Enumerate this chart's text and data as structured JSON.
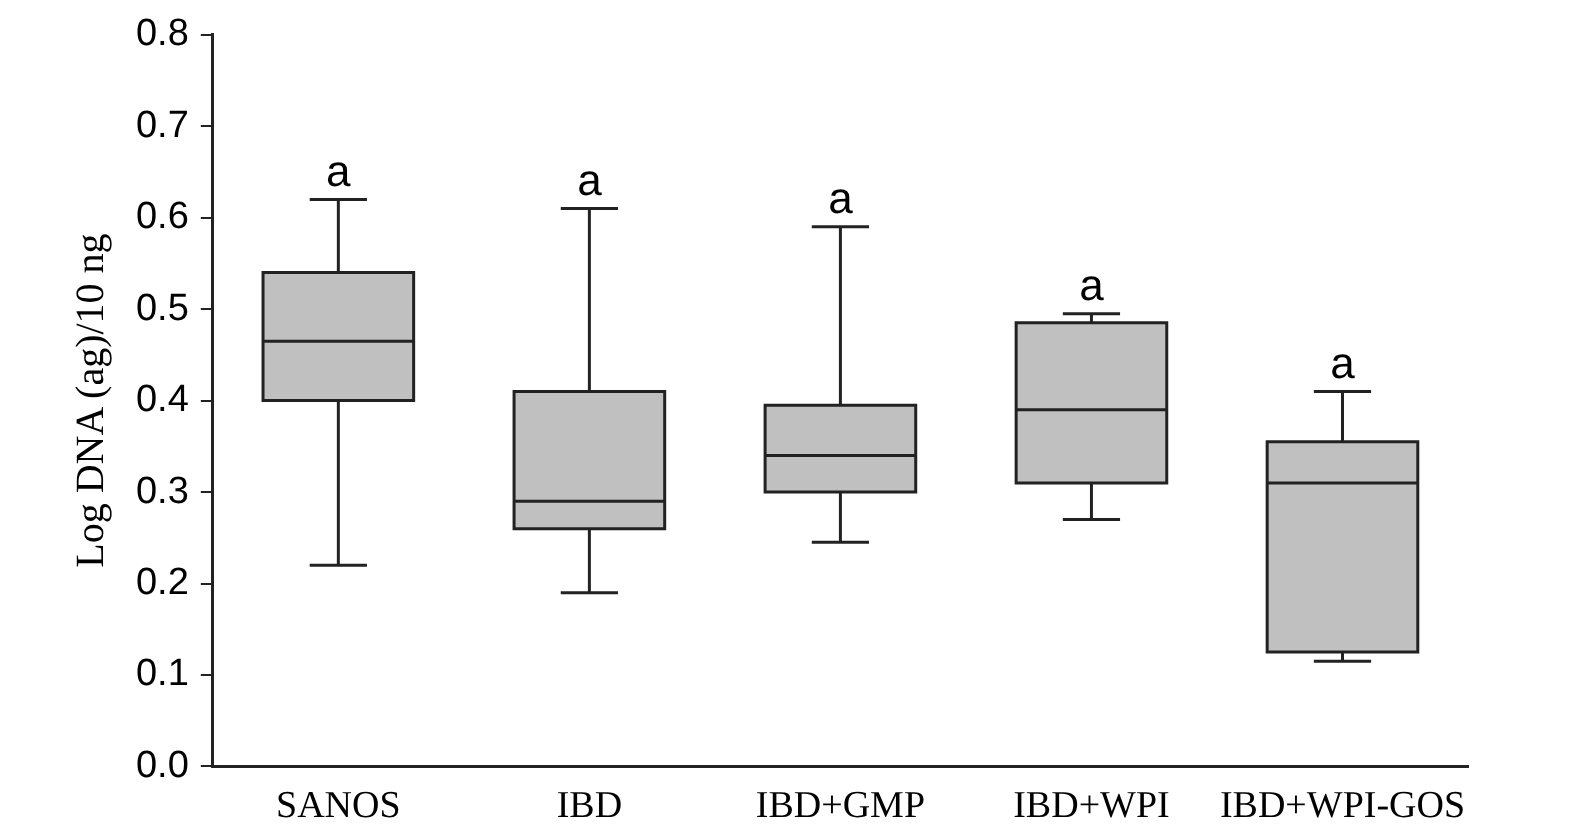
{
  "chart_data": {
    "type": "box",
    "ylabel": "Log DNA (ag)/10 ng",
    "categories": [
      "SANOS",
      "IBD",
      "IBD+GMP",
      "IBD+WPI",
      "IBD+WPI-GOS"
    ],
    "boxes": [
      {
        "low": 0.22,
        "q1": 0.4,
        "median": 0.465,
        "q3": 0.54,
        "high": 0.62
      },
      {
        "low": 0.19,
        "q1": 0.26,
        "median": 0.29,
        "q3": 0.41,
        "high": 0.61
      },
      {
        "low": 0.245,
        "q1": 0.3,
        "median": 0.34,
        "q3": 0.395,
        "high": 0.59
      },
      {
        "low": 0.27,
        "q1": 0.31,
        "median": 0.39,
        "q3": 0.485,
        "high": 0.495
      },
      {
        "low": 0.115,
        "q1": 0.125,
        "median": 0.31,
        "q3": 0.355,
        "high": 0.41
      }
    ],
    "color": "#c0c0c0",
    "ylim": [
      0,
      0.8
    ],
    "yticks": [
      {
        "value": 0,
        "label": "0.0"
      },
      0.1,
      0.2,
      0.3,
      0.4,
      0.5,
      0.6,
      0.7,
      0.8
    ],
    "grid": false,
    "legend": false,
    "annotations": [
      {
        "text": "a",
        "x": "SANOS",
        "y": 0.62
      },
      {
        "text": "a",
        "x": "IBD",
        "y": 0.61
      },
      {
        "text": "a",
        "x": "IBD+GMP",
        "y": 0.59
      },
      {
        "text": "a",
        "x": "IBD+WPI",
        "y": 0.495
      },
      {
        "text": "a",
        "x": "IBD+WPI-GOS",
        "y": 0.41
      }
    ]
  }
}
